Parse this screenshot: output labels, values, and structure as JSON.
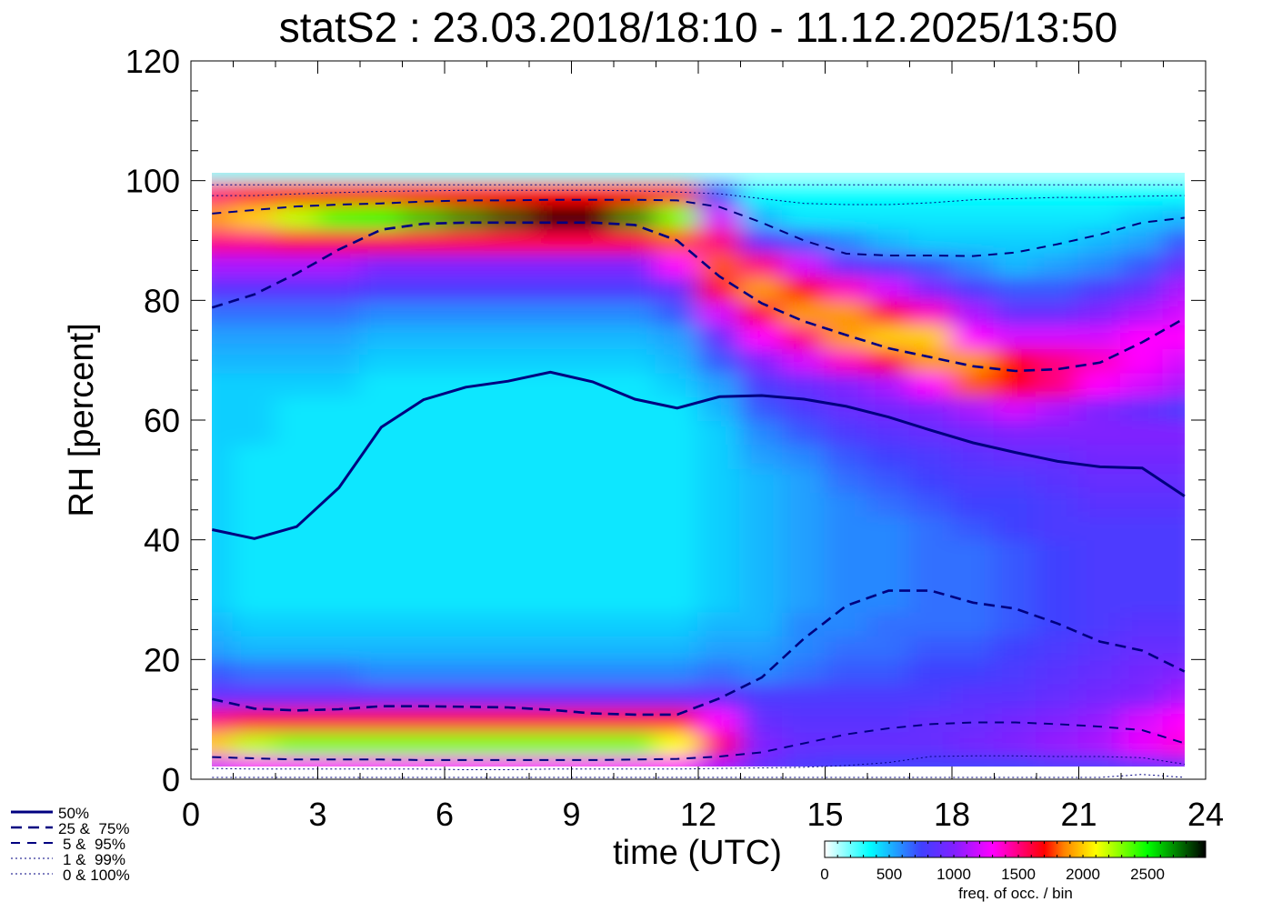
{
  "chart_data": {
    "type": "heatmap",
    "title": "statS2 : 23.03.2018/18:10 - 11.12.2025/13:50",
    "xlabel": "time (UTC)",
    "ylabel": "RH [percent]",
    "xlim": [
      0,
      24
    ],
    "ylim": [
      0,
      120
    ],
    "xticks": [
      "0",
      "3",
      "6",
      "9",
      "12",
      "15",
      "18",
      "21",
      "24"
    ],
    "yticks": [
      "0",
      "20",
      "40",
      "60",
      "80",
      "100",
      "120"
    ],
    "colorbar": {
      "label": "freq. of occ. / bin",
      "range": [
        0,
        2950
      ],
      "ticks": [
        "0",
        "500",
        "1000",
        "1500",
        "2000",
        "2500"
      ],
      "stops": [
        [
          0,
          "#ffffff"
        ],
        [
          350,
          "#00ffff"
        ],
        [
          750,
          "#4040ff"
        ],
        [
          1000,
          "#8020ff"
        ],
        [
          1300,
          "#ff00ff"
        ],
        [
          1700,
          "#ff0000"
        ],
        [
          1850,
          "#ff8000"
        ],
        [
          2100,
          "#ffff00"
        ],
        [
          2500,
          "#00ff00"
        ],
        [
          2950,
          "#000000"
        ]
      ]
    },
    "heatmap": {
      "x_hours": [
        0.5,
        1.5,
        2.5,
        3.5,
        4.5,
        5.5,
        6.5,
        7.5,
        8.5,
        9.5,
        10.5,
        11.5,
        12.5,
        13.5,
        14.5,
        15.5,
        16.5,
        17.5,
        18.5,
        19.5,
        20.5,
        21.5,
        22.5,
        23.5
      ],
      "rh_bin_width": 4,
      "rh_bin_start": 0,
      "values": [
        [
          1200,
          2000,
          1500,
          900,
          700,
          550,
          500,
          450,
          450,
          450,
          450,
          450,
          450,
          450,
          450,
          450,
          450,
          500,
          550,
          650,
          850,
          1100,
          1500,
          1900,
          1500,
          150
        ],
        [
          1300,
          2200,
          1600,
          900,
          650,
          500,
          450,
          400,
          400,
          400,
          400,
          400,
          400,
          400,
          450,
          450,
          450,
          500,
          550,
          650,
          850,
          1100,
          1500,
          2000,
          1600,
          150
        ],
        [
          1300,
          2300,
          1600,
          900,
          650,
          500,
          450,
          400,
          400,
          400,
          400,
          400,
          400,
          400,
          400,
          400,
          450,
          500,
          550,
          650,
          850,
          1100,
          1600,
          2200,
          1700,
          150
        ],
        [
          1300,
          2300,
          1600,
          900,
          650,
          500,
          450,
          400,
          400,
          400,
          400,
          400,
          400,
          400,
          400,
          400,
          450,
          500,
          550,
          650,
          850,
          1100,
          1600,
          2400,
          1700,
          150
        ],
        [
          1300,
          2300,
          1600,
          900,
          600,
          500,
          450,
          400,
          400,
          400,
          400,
          400,
          400,
          400,
          400,
          400,
          400,
          450,
          500,
          600,
          800,
          1000,
          1600,
          2500,
          1700,
          150
        ],
        [
          1300,
          2300,
          1600,
          900,
          600,
          500,
          450,
          400,
          400,
          400,
          400,
          400,
          400,
          400,
          400,
          400,
          400,
          450,
          500,
          600,
          800,
          1000,
          1600,
          2600,
          1700,
          150
        ],
        [
          1300,
          2300,
          1600,
          900,
          600,
          500,
          450,
          400,
          400,
          400,
          400,
          400,
          400,
          400,
          400,
          400,
          400,
          450,
          500,
          600,
          800,
          1000,
          1600,
          2700,
          1700,
          150
        ],
        [
          1300,
          2300,
          1600,
          900,
          600,
          500,
          450,
          400,
          400,
          400,
          400,
          400,
          400,
          400,
          400,
          400,
          400,
          450,
          500,
          600,
          800,
          1000,
          1600,
          2800,
          1700,
          150
        ],
        [
          1300,
          2300,
          1600,
          900,
          600,
          500,
          450,
          400,
          400,
          400,
          400,
          400,
          400,
          400,
          400,
          400,
          400,
          450,
          500,
          600,
          800,
          1000,
          1600,
          2950,
          1700,
          150
        ],
        [
          1300,
          2300,
          1600,
          900,
          600,
          500,
          450,
          400,
          400,
          400,
          400,
          400,
          400,
          400,
          400,
          400,
          400,
          450,
          500,
          600,
          800,
          1000,
          1600,
          2950,
          1700,
          150
        ],
        [
          1300,
          2300,
          1600,
          900,
          600,
          500,
          450,
          400,
          400,
          400,
          400,
          400,
          400,
          400,
          400,
          400,
          400,
          450,
          500,
          600,
          800,
          1000,
          1600,
          2700,
          1700,
          150
        ],
        [
          1300,
          2100,
          1600,
          900,
          600,
          500,
          450,
          400,
          400,
          400,
          400,
          400,
          400,
          400,
          400,
          400,
          450,
          500,
          550,
          700,
          900,
          1300,
          1800,
          2300,
          1600,
          150
        ],
        [
          1100,
          1500,
          1300,
          900,
          650,
          550,
          500,
          450,
          450,
          450,
          450,
          450,
          450,
          450,
          450,
          500,
          550,
          700,
          900,
          1200,
          1600,
          1800,
          1500,
          1200,
          700,
          100
        ],
        [
          900,
          1000,
          900,
          800,
          600,
          550,
          500,
          500,
          500,
          500,
          500,
          500,
          500,
          550,
          600,
          700,
          800,
          1000,
          1300,
          1600,
          1900,
          1500,
          900,
          500,
          350,
          100
        ],
        [
          800,
          900,
          850,
          800,
          650,
          600,
          600,
          550,
          550,
          550,
          550,
          550,
          550,
          600,
          700,
          800,
          900,
          1200,
          1500,
          1900,
          1700,
          1200,
          700,
          400,
          350,
          100
        ],
        [
          750,
          900,
          850,
          800,
          700,
          650,
          600,
          600,
          600,
          600,
          600,
          600,
          650,
          700,
          800,
          900,
          1000,
          1400,
          1900,
          1900,
          1400,
          900,
          600,
          400,
          350,
          100
        ],
        [
          750,
          900,
          850,
          800,
          700,
          650,
          650,
          600,
          600,
          600,
          600,
          650,
          700,
          750,
          850,
          950,
          1100,
          1600,
          2000,
          1600,
          1200,
          800,
          500,
          400,
          350,
          100
        ],
        [
          750,
          900,
          900,
          800,
          750,
          700,
          650,
          650,
          650,
          650,
          650,
          700,
          750,
          800,
          900,
          1000,
          1300,
          1900,
          2000,
          1400,
          1000,
          700,
          450,
          400,
          350,
          100
        ],
        [
          750,
          950,
          900,
          850,
          750,
          700,
          650,
          650,
          650,
          650,
          700,
          750,
          800,
          850,
          950,
          1100,
          1800,
          1900,
          1300,
          1100,
          800,
          600,
          450,
          400,
          350,
          100
        ],
        [
          750,
          1000,
          950,
          850,
          800,
          750,
          700,
          700,
          700,
          700,
          750,
          750,
          800,
          900,
          1000,
          1200,
          1700,
          1700,
          1200,
          900,
          700,
          500,
          450,
          400,
          350,
          100
        ],
        [
          800,
          1050,
          1000,
          900,
          850,
          800,
          750,
          750,
          750,
          750,
          800,
          800,
          850,
          900,
          1000,
          1100,
          1500,
          1500,
          1200,
          900,
          700,
          550,
          450,
          400,
          350,
          100
        ],
        [
          800,
          1100,
          1050,
          950,
          900,
          850,
          800,
          800,
          800,
          800,
          800,
          850,
          900,
          950,
          1000,
          1000,
          1300,
          1400,
          1200,
          1000,
          800,
          600,
          500,
          400,
          350,
          100
        ],
        [
          850,
          1250,
          1200,
          1000,
          950,
          900,
          850,
          800,
          800,
          800,
          800,
          850,
          900,
          950,
          1000,
          900,
          1200,
          1300,
          1300,
          1100,
          900,
          700,
          550,
          450,
          350,
          100
        ],
        [
          900,
          1350,
          1300,
          1100,
          1000,
          900,
          850,
          800,
          800,
          800,
          800,
          850,
          900,
          950,
          1000,
          800,
          1100,
          1200,
          1300,
          1200,
          1100,
          900,
          700,
          500,
          350,
          100
        ]
      ]
    },
    "series": [
      {
        "name": "50%",
        "label": "50%",
        "style": "solid",
        "values": [
          41.7,
          40.2,
          42.2,
          48.7,
          58.8,
          63.4,
          65.5,
          66.5,
          68.0,
          66.4,
          63.5,
          62.0,
          63.9,
          64.1,
          63.5,
          62.3,
          60.5,
          58.3,
          56.2,
          54.6,
          53.1,
          52.2,
          52.0,
          47.3
        ]
      },
      {
        "name": "75%",
        "label": "25 &  75%",
        "style": "dashed",
        "values": [
          78.8,
          81.0,
          84.5,
          88.5,
          91.8,
          92.8,
          93.0,
          93.0,
          93.0,
          93.0,
          92.6,
          90.0,
          84.0,
          79.5,
          76.5,
          74.2,
          72.0,
          70.5,
          69.0,
          68.2,
          68.5,
          69.6,
          73.0,
          77.0
        ]
      },
      {
        "name": "25%",
        "label": "",
        "style": "dashed",
        "values": [
          13.4,
          11.8,
          11.5,
          11.7,
          12.2,
          12.2,
          12.1,
          12.0,
          11.6,
          11.0,
          10.8,
          10.8,
          13.5,
          17.0,
          23.5,
          29.0,
          31.5,
          31.5,
          29.5,
          28.5,
          26.0,
          23.0,
          21.5,
          18.0
        ]
      },
      {
        "name": "95%",
        "label": "5 &  95%",
        "style": "dashed-thin",
        "values": [
          94.5,
          95.1,
          95.7,
          96.0,
          96.2,
          96.5,
          96.7,
          96.7,
          96.8,
          96.8,
          96.8,
          96.7,
          95.6,
          93.0,
          90.0,
          87.8,
          87.5,
          87.5,
          87.4,
          88.0,
          89.4,
          91.0,
          93.0,
          93.8
        ]
      },
      {
        "name": "5%",
        "label": "",
        "style": "dashed-thin",
        "values": [
          3.7,
          3.5,
          3.3,
          3.3,
          3.3,
          3.2,
          3.2,
          3.2,
          3.2,
          3.2,
          3.3,
          3.4,
          3.8,
          4.5,
          6.0,
          7.5,
          8.5,
          9.2,
          9.5,
          9.5,
          9.2,
          8.8,
          8.2,
          6.0
        ]
      },
      {
        "name": "99%",
        "label": "1 &  99%",
        "style": "dotted",
        "values": [
          97.5,
          97.5,
          97.8,
          98.0,
          98.2,
          98.3,
          98.4,
          98.4,
          98.4,
          98.4,
          98.3,
          98.1,
          97.8,
          97.0,
          96.2,
          96.0,
          96.0,
          96.3,
          96.8,
          97.0,
          97.2,
          97.2,
          97.4,
          97.5
        ]
      },
      {
        "name": "1%",
        "label": "",
        "style": "dotted",
        "values": [
          1.8,
          1.7,
          1.7,
          1.7,
          1.7,
          1.7,
          1.6,
          1.6,
          1.7,
          1.7,
          1.7,
          1.7,
          1.8,
          1.9,
          2.0,
          2.3,
          2.8,
          3.8,
          3.9,
          3.9,
          3.8,
          3.8,
          3.6,
          2.5
        ]
      },
      {
        "name": "100%",
        "label": "0 & 100%",
        "style": "dotted",
        "values": [
          99.3,
          99.3,
          99.3,
          99.3,
          99.3,
          99.3,
          99.3,
          99.3,
          99.3,
          99.3,
          99.3,
          99.3,
          99.3,
          99.3,
          99.3,
          99.3,
          99.3,
          99.3,
          99.3,
          99.3,
          99.3,
          99.3,
          99.3,
          99.3
        ]
      },
      {
        "name": "0%",
        "label": "",
        "style": "dotted",
        "values": [
          0.3,
          0.3,
          0.3,
          0.3,
          0.3,
          0.3,
          0.3,
          0.3,
          0.3,
          0.3,
          0.3,
          0.3,
          0.3,
          0.3,
          0.3,
          0.3,
          0.3,
          0.3,
          0.3,
          0.3,
          0.3,
          0.3,
          0.8,
          0.3
        ]
      }
    ],
    "line_color": "#000080",
    "legend": {
      "placement": "bottom-left",
      "entries": [
        "50%",
        "25 &  75%",
        "5 &  95%",
        "1 &  99%",
        "0 & 100%"
      ]
    },
    "grid": false
  }
}
